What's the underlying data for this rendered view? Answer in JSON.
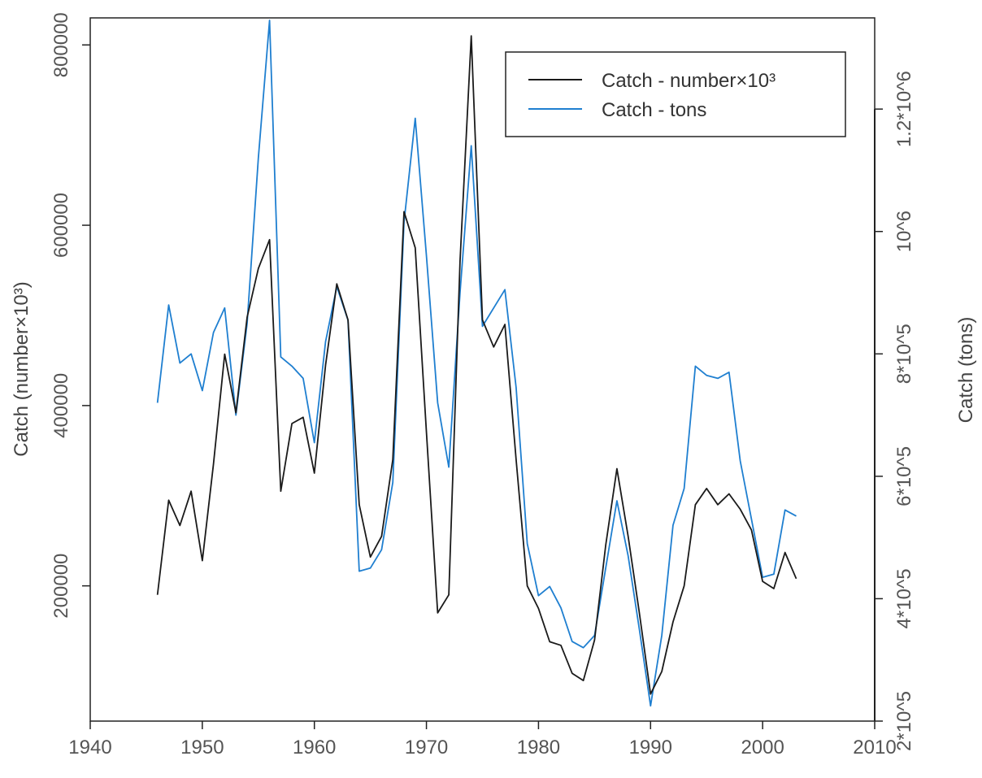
{
  "chart_data": {
    "type": "line",
    "title": "",
    "xlabel": "",
    "ylabel": "Catch (number×10³)",
    "y2label": "Catch (tons)",
    "xlim": [
      1940,
      2010
    ],
    "ylim": [
      50000,
      830000
    ],
    "y2lim": [
      200000,
      1349000
    ],
    "x_ticks": [
      1940,
      1950,
      1960,
      1970,
      1980,
      1990,
      2000,
      2010
    ],
    "y_ticks": [
      200000,
      400000,
      600000,
      800000
    ],
    "y_tick_labels": [
      "200000",
      "400000",
      "600000",
      "800000"
    ],
    "y2_ticks": [
      200000,
      400000,
      600000,
      800000,
      1000000,
      1200000
    ],
    "y2_tick_labels": [
      "2*10^5",
      "4*10^5",
      "6*10^5",
      "8*10^5",
      "10^6",
      "1.2*10^6"
    ],
    "grid": false,
    "legend_position": "top-right",
    "series": [
      {
        "name": "Catch - number×10³",
        "axis": "left",
        "color": "#1a1a1a",
        "x": [
          1946,
          1947,
          1948,
          1949,
          1950,
          1951,
          1952,
          1953,
          1954,
          1955,
          1956,
          1957,
          1958,
          1959,
          1960,
          1961,
          1962,
          1963,
          1964,
          1965,
          1966,
          1967,
          1968,
          1969,
          1970,
          1971,
          1972,
          1973,
          1974,
          1975,
          1976,
          1977,
          1978,
          1979,
          1980,
          1981,
          1982,
          1983,
          1984,
          1985,
          1986,
          1987,
          1988,
          1989,
          1990,
          1991,
          1992,
          1993,
          1994,
          1995,
          1996,
          1997,
          1998,
          1999,
          2000,
          2001,
          2002,
          2003
        ],
        "values": [
          190000,
          295000,
          267000,
          305000,
          228000,
          335000,
          457000,
          392000,
          498000,
          552000,
          584000,
          305000,
          380000,
          387000,
          325000,
          445000,
          535000,
          495000,
          290000,
          232000,
          255000,
          340000,
          615000,
          575000,
          370000,
          170000,
          190000,
          560000,
          810000,
          495000,
          465000,
          490000,
          340000,
          200000,
          175000,
          138000,
          134000,
          103000,
          95000,
          140000,
          245000,
          330000,
          255000,
          170000,
          80000,
          105000,
          160000,
          200000,
          290000,
          308000,
          290000,
          302000,
          285000,
          262000,
          205000,
          197000,
          237000,
          208000
        ]
      },
      {
        "name": "Catch - tons",
        "axis": "right",
        "color": "#1f7fd0",
        "x": [
          1946,
          1947,
          1948,
          1949,
          1950,
          1951,
          1952,
          1953,
          1954,
          1955,
          1956,
          1957,
          1958,
          1959,
          1960,
          1961,
          1962,
          1963,
          1964,
          1965,
          1966,
          1967,
          1968,
          1969,
          1970,
          1971,
          1972,
          1973,
          1974,
          1975,
          1976,
          1977,
          1978,
          1979,
          1980,
          1981,
          1982,
          1983,
          1984,
          1985,
          1986,
          1987,
          1988,
          1989,
          1990,
          1991,
          1992,
          1993,
          1994,
          1995,
          1996,
          1997,
          1998,
          1999,
          2000,
          2001,
          2002,
          2003
        ],
        "values": [
          720000,
          880000,
          785000,
          800000,
          740000,
          835000,
          875000,
          700000,
          850000,
          1120000,
          1345000,
          795000,
          780000,
          760000,
          655000,
          820000,
          910000,
          855000,
          445000,
          450000,
          480000,
          590000,
          1015000,
          1185000,
          960000,
          720000,
          615000,
          900000,
          1140000,
          845000,
          875000,
          905000,
          745000,
          490000,
          405000,
          420000,
          385000,
          330000,
          320000,
          340000,
          450000,
          560000,
          470000,
          350000,
          225000,
          340000,
          520000,
          580000,
          780000,
          765000,
          760000,
          770000,
          625000,
          530000,
          435000,
          440000,
          545000,
          535000
        ]
      }
    ]
  }
}
